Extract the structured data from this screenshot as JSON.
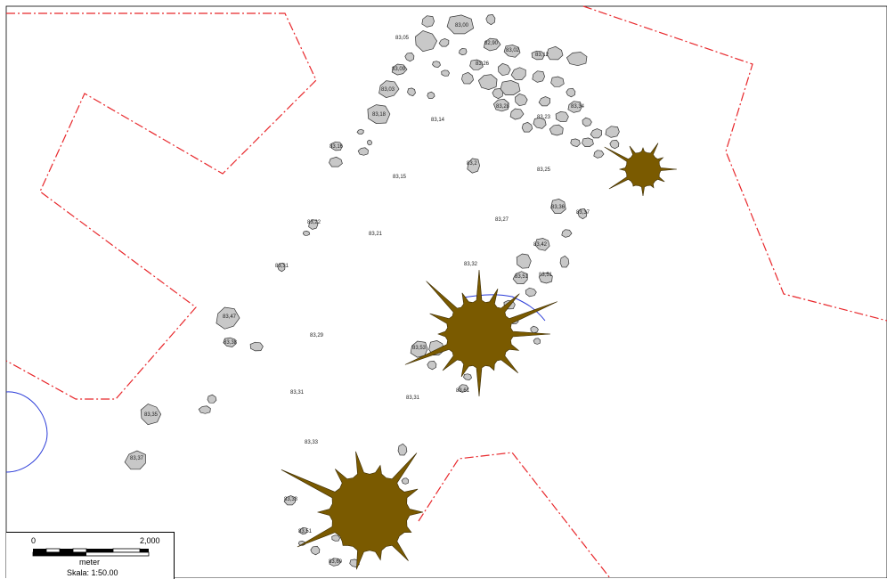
{
  "colors": {
    "boundary": "#e8272b",
    "stone_fill": "#c8c8c8",
    "stone_stroke": "#333333",
    "root_fill": "#7a5a00",
    "root_stroke": "#3a2a00",
    "water": "#2a3bd8"
  },
  "labels": [
    "83,00",
    "83,05",
    "82,90",
    "83,02",
    "83,12",
    "83,09",
    "83,26",
    "83,03",
    "83,18",
    "83,14",
    "83,28",
    "83,23",
    "83,34",
    "83,16",
    "83,15",
    "83,25",
    "83,2",
    "83,22",
    "83,21",
    "83,27",
    "83,36",
    "83,37",
    "83,42",
    "83,32",
    "83,31",
    "83,47",
    "83,38",
    "83,29",
    "83,53",
    "83,51",
    "83,35",
    "83,31",
    "83,31",
    "83,33",
    "83,37",
    "83,33",
    "83,51",
    "83,60",
    "83,61",
    "83,51"
  ],
  "scalebar": {
    "min_label": "0",
    "max_label": "2,000",
    "unit": "meter",
    "scale_text": "Skala: 1:50.00"
  }
}
